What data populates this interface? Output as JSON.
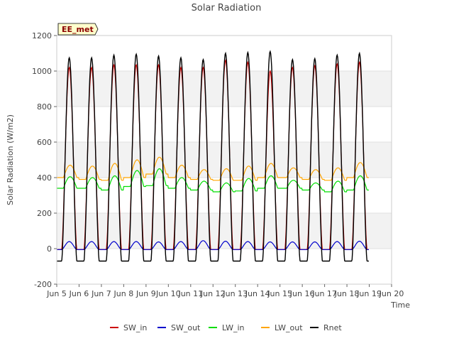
{
  "chart_data": {
    "type": "line",
    "title": "Solar Radiation",
    "xlabel": "Time",
    "ylabel": "Solar Radiation (W/m2)",
    "station_badge": "EE_met",
    "ylim": [
      -200,
      1200
    ],
    "yticks": [
      -200,
      0,
      200,
      400,
      600,
      800,
      1000,
      1200
    ],
    "xlim": [
      5,
      20
    ],
    "xticks": [
      {
        "value": 5,
        "label": "Jun 5"
      },
      {
        "value": 6,
        "label": "Jun 6"
      },
      {
        "value": 7,
        "label": "Jun 7"
      },
      {
        "value": 8,
        "label": "Jun 8"
      },
      {
        "value": 9,
        "label": "Jun 9"
      },
      {
        "value": 10,
        "label": "Jun 10"
      },
      {
        "value": 11,
        "label": "Jun 11"
      },
      {
        "value": 12,
        "label": "Jun 12"
      },
      {
        "value": 13,
        "label": "Jun 13"
      },
      {
        "value": 14,
        "label": "Jun 14"
      },
      {
        "value": 15,
        "label": "Jun 15"
      },
      {
        "value": 16,
        "label": "Jun 16"
      },
      {
        "value": 17,
        "label": "Jun 17"
      },
      {
        "value": 18,
        "label": "Jun 18"
      },
      {
        "value": 19,
        "label": "Jun 19"
      },
      {
        "value": 20,
        "label": "Jun 20"
      }
    ],
    "grid": "horizontal bands",
    "legend_position": "bottom",
    "days": [
      "Jun 5",
      "Jun 6",
      "Jun 7",
      "Jun 8",
      "Jun 9",
      "Jun 10",
      "Jun 11",
      "Jun 12",
      "Jun 13",
      "Jun 14",
      "Jun 15",
      "Jun 16",
      "Jun 17",
      "Jun 18"
    ],
    "series": [
      {
        "name": "SW_in",
        "color": "#cc0000",
        "daily_peak": [
          1020,
          1020,
          1035,
          1035,
          1035,
          1020,
          1020,
          1060,
          1050,
          1000,
          1020,
          1030,
          1040,
          1050
        ],
        "night_value": -5
      },
      {
        "name": "SW_out",
        "color": "#0000cc",
        "daily_peak": [
          40,
          40,
          40,
          40,
          38,
          40,
          45,
          42,
          40,
          38,
          38,
          38,
          40,
          42
        ],
        "night_value": -5
      },
      {
        "name": "LW_in",
        "color": "#00dd00",
        "daily_peak": [
          405,
          400,
          410,
          440,
          450,
          400,
          380,
          370,
          395,
          410,
          385,
          370,
          380,
          410
        ],
        "daily_min": [
          340,
          340,
          330,
          350,
          355,
          340,
          330,
          320,
          325,
          340,
          340,
          330,
          320,
          330
        ]
      },
      {
        "name": "LW_out",
        "color": "#ffa500",
        "daily_peak": [
          470,
          465,
          480,
          500,
          515,
          470,
          445,
          450,
          465,
          480,
          455,
          445,
          455,
          485
        ],
        "daily_min": [
          400,
          390,
          385,
          400,
          420,
          400,
          390,
          385,
          385,
          400,
          400,
          390,
          385,
          400
        ]
      },
      {
        "name": "Rnet",
        "color": "#000000",
        "daily_peak": [
          1075,
          1075,
          1090,
          1095,
          1085,
          1075,
          1065,
          1100,
          1105,
          1110,
          1065,
          1070,
          1090,
          1100
        ],
        "night_value": -70
      }
    ]
  }
}
